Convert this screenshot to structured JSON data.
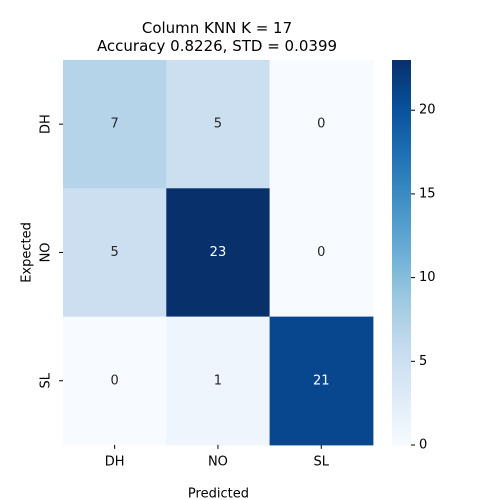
{
  "chart_data": {
    "type": "heatmap",
    "title": [
      "Column KNN K = 17",
      "Accuracy 0.8226, STD = 0.0399"
    ],
    "xlabel": "Predicted",
    "ylabel": "Expected",
    "x_categories": [
      "DH",
      "NO",
      "SL"
    ],
    "y_categories": [
      "DH",
      "NO",
      "SL"
    ],
    "values": [
      [
        7,
        5,
        0
      ],
      [
        5,
        23,
        0
      ],
      [
        0,
        1,
        21
      ]
    ],
    "colormap": "Blues",
    "colorbar": {
      "range": [
        0,
        23
      ],
      "ticks": [
        0,
        5,
        10,
        15,
        20
      ]
    }
  }
}
